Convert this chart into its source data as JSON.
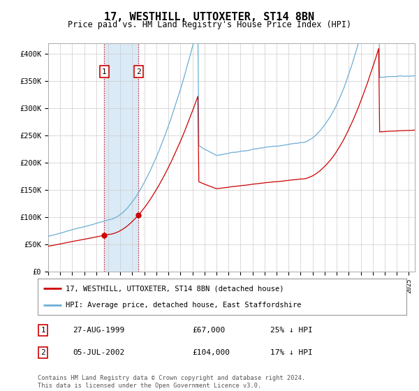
{
  "title": "17, WESTHILL, UTTOXETER, ST14 8BN",
  "subtitle": "Price paid vs. HM Land Registry's House Price Index (HPI)",
  "ylim": [
    0,
    420000
  ],
  "yticks": [
    0,
    50000,
    100000,
    150000,
    200000,
    250000,
    300000,
    350000,
    400000
  ],
  "ytick_labels": [
    "£0",
    "£50K",
    "£100K",
    "£150K",
    "£200K",
    "£250K",
    "£300K",
    "£350K",
    "£400K"
  ],
  "sale1_date": 1999.65,
  "sale1_price": 67000,
  "sale2_date": 2002.51,
  "sale2_price": 104000,
  "hpi_color": "#6baed6",
  "price_color": "#cc0000",
  "shade_color": "#daeaf7",
  "legend_label_price": "17, WESTHILL, UTTOXETER, ST14 8BN (detached house)",
  "legend_label_hpi": "HPI: Average price, detached house, East Staffordshire",
  "footnote": "Contains HM Land Registry data © Crown copyright and database right 2024.\nThis data is licensed under the Open Government Licence v3.0.",
  "xstart": 1995,
  "xend": 2025.5
}
